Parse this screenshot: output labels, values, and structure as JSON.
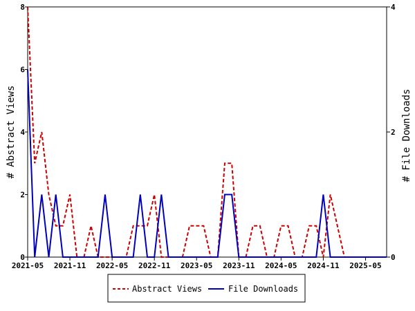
{
  "chart_data": {
    "type": "line",
    "title": "",
    "x": [
      "2021-05",
      "2021-06",
      "2021-07",
      "2021-08",
      "2021-09",
      "2021-10",
      "2021-11",
      "2021-12",
      "2022-01",
      "2022-02",
      "2022-03",
      "2022-04",
      "2022-05",
      "2022-06",
      "2022-07",
      "2022-08",
      "2022-09",
      "2022-10",
      "2022-11",
      "2022-12",
      "2023-01",
      "2023-02",
      "2023-03",
      "2023-04",
      "2023-05",
      "2023-06",
      "2023-07",
      "2023-08",
      "2023-09",
      "2023-10",
      "2023-11",
      "2023-12",
      "2024-01",
      "2024-02",
      "2024-03",
      "2024-04",
      "2024-05",
      "2024-06",
      "2024-07",
      "2024-08",
      "2024-09",
      "2024-10",
      "2024-11",
      "2024-12",
      "2025-01",
      "2025-02",
      "2025-03",
      "2025-04",
      "2025-05",
      "2025-06",
      "2025-07",
      "2025-08"
    ],
    "x_tick_labels": [
      "2021-05",
      "2021-11",
      "2022-05",
      "2022-11",
      "2023-05",
      "2023-11",
      "2024-05",
      "2024-11",
      "2025-05"
    ],
    "y_left": {
      "label": "# Abstract Views",
      "ylim": [
        0,
        8
      ],
      "ticks": [
        0,
        2,
        4,
        6,
        8
      ]
    },
    "y_right": {
      "label": "# File Downloads",
      "ylim": [
        0,
        4
      ],
      "ticks": [
        0,
        2,
        4
      ]
    },
    "series": [
      {
        "name": "Abstract Views",
        "axis": "left",
        "color": "#cc0000",
        "dash": true,
        "values": [
          8,
          3,
          4,
          2,
          1,
          1,
          2,
          0,
          0,
          1,
          0,
          0,
          0,
          0,
          0,
          1,
          1,
          1,
          2,
          0,
          0,
          0,
          0,
          1,
          1,
          1,
          0,
          0,
          3,
          3,
          0,
          0,
          1,
          1,
          0,
          0,
          1,
          1,
          0,
          0,
          1,
          1,
          0,
          2,
          1,
          0,
          0,
          0,
          0,
          0,
          0,
          0
        ]
      },
      {
        "name": "File Downloads",
        "axis": "right",
        "color": "#0000bb",
        "dash": false,
        "values": [
          3,
          0,
          1,
          0,
          1,
          0,
          0,
          0,
          0,
          0,
          0,
          1,
          0,
          0,
          0,
          0,
          1,
          0,
          0,
          1,
          0,
          0,
          0,
          0,
          0,
          0,
          0,
          0,
          1,
          1,
          0,
          0,
          0,
          0,
          0,
          0,
          0,
          0,
          0,
          0,
          0,
          0,
          1,
          0,
          0,
          0,
          0,
          0,
          0,
          0,
          0,
          0
        ]
      }
    ],
    "legend": {
      "placement": "bottom-center",
      "entries": [
        "Abstract Views",
        "File Downloads"
      ]
    },
    "grid": false
  }
}
